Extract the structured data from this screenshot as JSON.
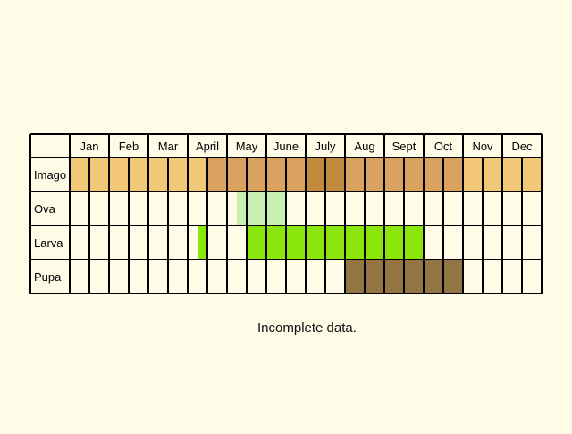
{
  "chart_data": {
    "type": "table",
    "months": [
      "Jan",
      "Feb",
      "Mar",
      "April",
      "May",
      "June",
      "July",
      "Aug",
      "Sept",
      "Oct",
      "Nov",
      "Dec"
    ],
    "half_months_per_month": 2,
    "stages": [
      {
        "name": "Imago",
        "periods": [
          {
            "start": 0,
            "end": 3.5,
            "level": "low"
          },
          {
            "start": 3.5,
            "end": 6,
            "level": "medium"
          },
          {
            "start": 6,
            "end": 7,
            "level": "high"
          },
          {
            "start": 7,
            "end": 10,
            "level": "medium"
          },
          {
            "start": 10,
            "end": 12,
            "level": "low"
          }
        ]
      },
      {
        "name": "Ova",
        "periods": [
          {
            "start": 4.25,
            "end": 5.5,
            "level": "low"
          }
        ]
      },
      {
        "name": "Larva",
        "periods": [
          {
            "start": 3.25,
            "end": 3.5,
            "level": "high"
          },
          {
            "start": 4.5,
            "end": 9,
            "level": "high"
          }
        ]
      },
      {
        "name": "Pupa",
        "periods": [
          {
            "start": 7,
            "end": 10,
            "level": "high"
          }
        ]
      }
    ]
  },
  "colors": {
    "background": "#fefbe7",
    "grid": "#000000",
    "Imago": {
      "low": "#f2c878",
      "medium": "#d9a25f",
      "high": "#c0893b"
    },
    "Ova": {
      "low": "#c8f0b0"
    },
    "Larva": {
      "high": "#8be60c"
    },
    "Pupa": {
      "high": "#927543"
    }
  },
  "note": "Incomplete data."
}
